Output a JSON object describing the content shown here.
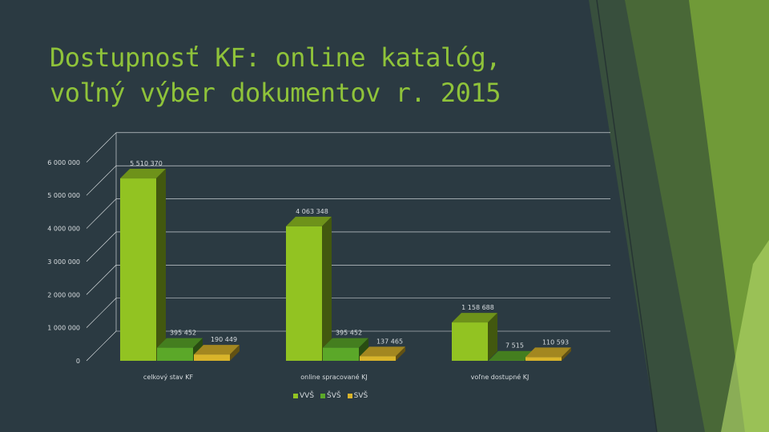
{
  "slide": {
    "title": "Dostupnosť KF: online katalóg, voľný výber dokumentov r. 2015"
  },
  "colors": {
    "background": "#2b3a42",
    "title": "#8fc33a",
    "accent_green": "#8fc33a"
  },
  "chart_data": {
    "type": "bar",
    "categories": [
      "celkový stav KF",
      "online spracované KJ",
      "voľne dostupné KJ"
    ],
    "series": [
      {
        "name": "VVŠ",
        "color": "#92c322",
        "values": [
          5510370,
          4063348,
          1158688
        ]
      },
      {
        "name": "ŠVŠ",
        "color": "#5ba829",
        "values": [
          395452,
          395452,
          7515
        ]
      },
      {
        "name": "SVŠ",
        "color": "#d9b42a",
        "values": [
          190449,
          137465,
          110593
        ]
      }
    ],
    "value_labels": [
      [
        "5 510 370",
        "4 063 348",
        "1 158 688"
      ],
      [
        "395 452",
        "395 452",
        "7 515"
      ],
      [
        "190 449",
        "137 465",
        "110 593"
      ]
    ],
    "ylim": [
      0,
      6000000
    ],
    "yticks": [
      "0",
      "1 000 000",
      "2 000 000",
      "3 000 000",
      "4 000 000",
      "5 000 000",
      "6 000 000"
    ],
    "grid": true,
    "legend_position": "bottom",
    "three_d": true
  }
}
